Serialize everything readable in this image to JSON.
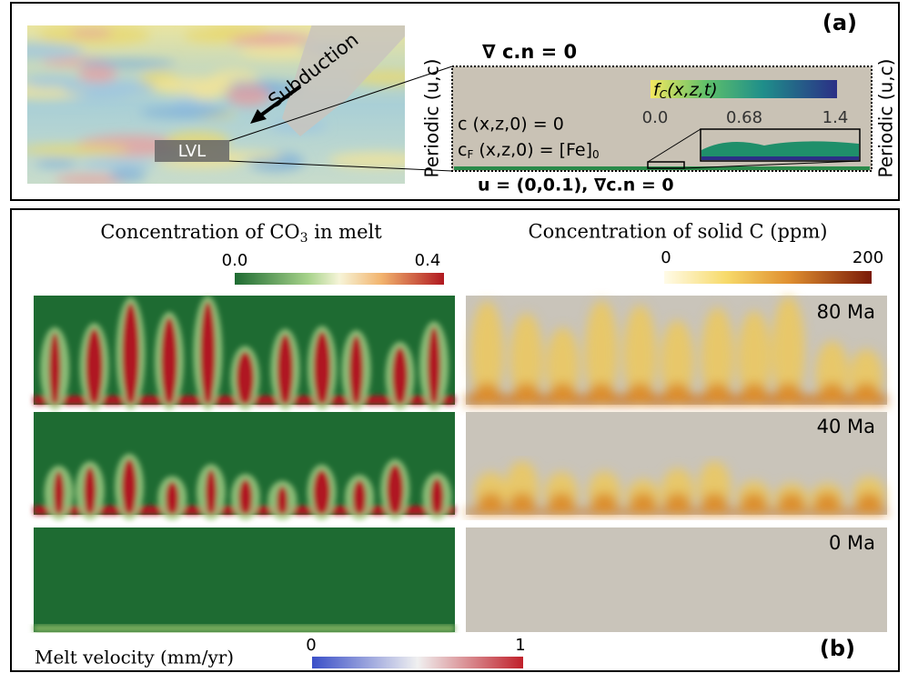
{
  "panel_a": {
    "label": "(a)",
    "subduction": "Subduction",
    "lvl": "LVL",
    "top_bc": "∇ c.n = 0",
    "left_bc": "Periodic (u,c)",
    "right_bc": "Periodic (u,c)",
    "initial_c": "c (x,z,0) = 0",
    "initial_fe": [
      "c",
      "F",
      " (x,z,0) = [Fe]",
      "0"
    ],
    "bottom_bc": "u = (0,0.1), ∇c.n = 0",
    "colorbar_label": [
      "f",
      "C",
      "(x,z,t)"
    ],
    "colorbar_ticks": [
      "0.0",
      "0.68",
      "1.4"
    ]
  },
  "panel_b": {
    "label": "(b)",
    "left_title": [
      "Concentration of CO",
      "3",
      " in melt"
    ],
    "right_title": "Concentration of solid C (ppm)",
    "left_colorbar_ticks": [
      "0.0",
      "0.4"
    ],
    "right_colorbar_ticks": [
      "0",
      "200"
    ],
    "times": [
      "80 Ma",
      "40 Ma",
      "0 Ma"
    ],
    "velocity_label": "Melt velocity (mm/yr)",
    "velocity_ticks": [
      "0",
      "1"
    ]
  }
}
